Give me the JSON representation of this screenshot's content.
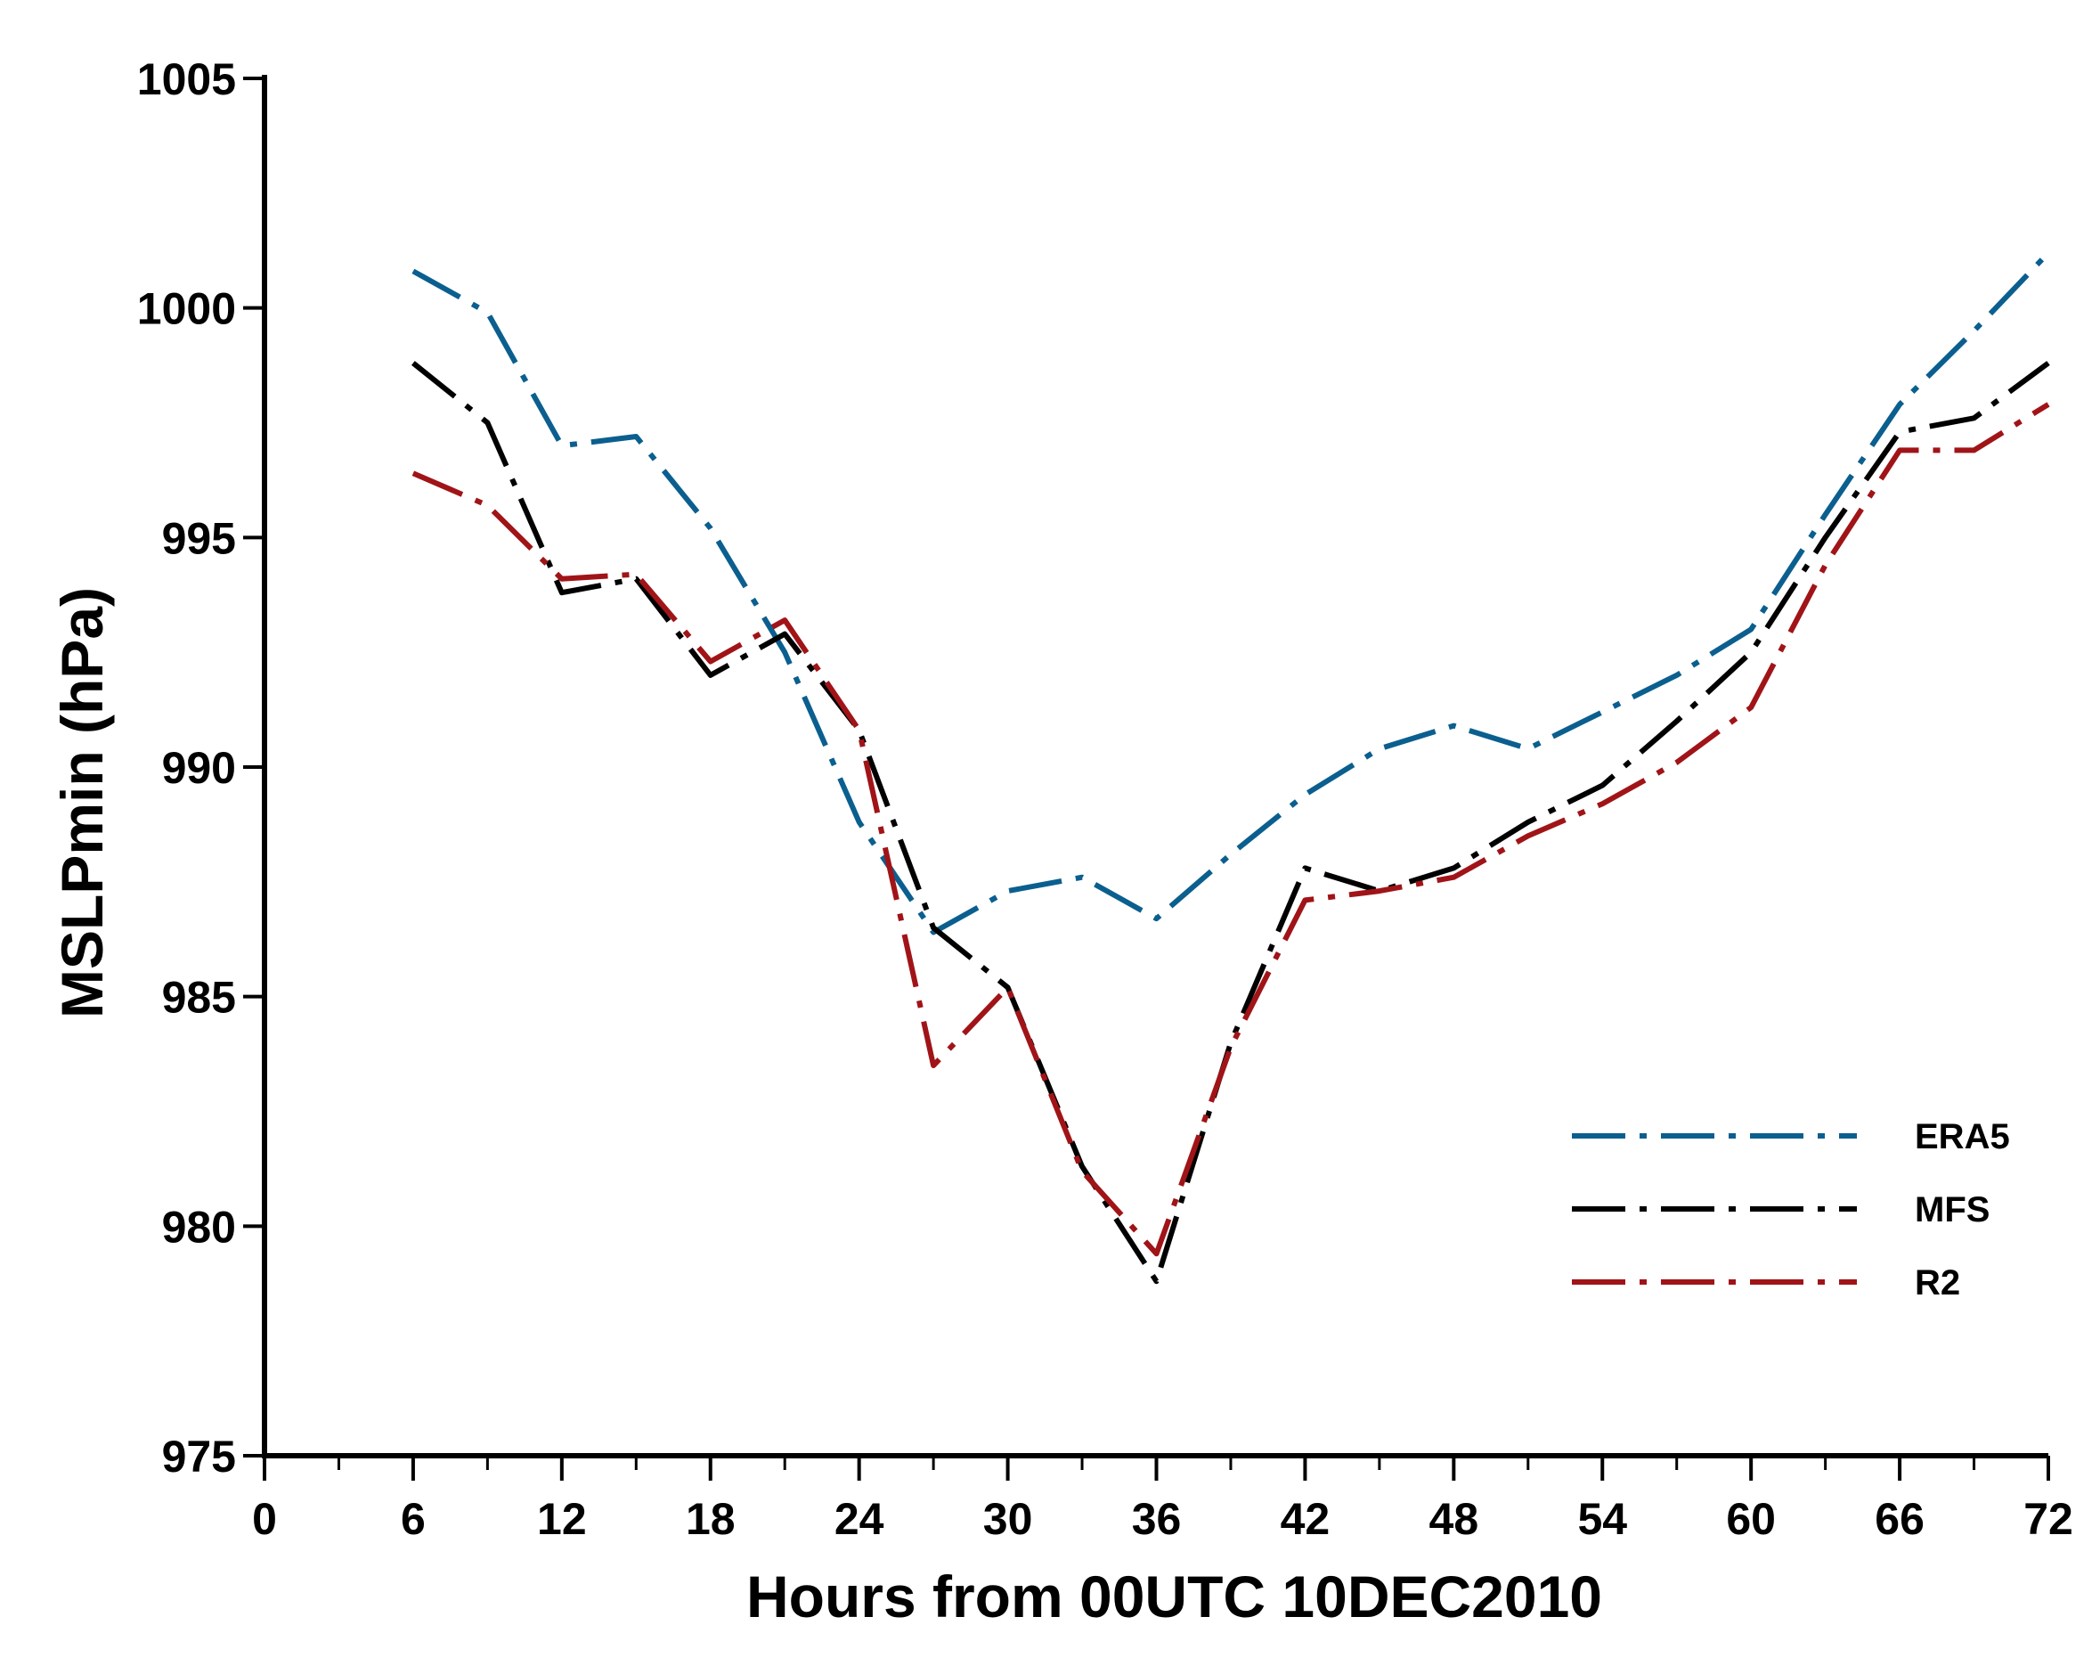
{
  "chart_data": {
    "type": "line",
    "title": "",
    "xlabel": "Hours from 00UTC 10DEC2010",
    "ylabel": "MSLPmin (hPa)",
    "xlim": [
      0,
      72
    ],
    "ylim": [
      975,
      1005
    ],
    "x_ticks": [
      "0",
      "6",
      "12",
      "18",
      "24",
      "30",
      "36",
      "42",
      "48",
      "54",
      "60",
      "66",
      "72"
    ],
    "y_ticks": [
      "975",
      "980",
      "985",
      "990",
      "995",
      "1000",
      "1005"
    ],
    "grid": false,
    "legend_position": "bottom-right",
    "series": [
      {
        "name": "ERA5",
        "color": "#0b5f8f",
        "x": [
          6,
          9,
          12,
          15,
          18,
          21,
          24,
          27,
          30,
          33,
          36,
          39,
          42,
          45,
          48,
          51,
          54,
          57,
          60,
          63,
          66,
          69,
          72
        ],
        "y": [
          1000.8,
          999.9,
          997.0,
          997.2,
          995.2,
          992.5,
          988.8,
          986.4,
          987.3,
          987.6,
          986.7,
          988.1,
          989.4,
          990.4,
          990.9,
          990.4,
          991.2,
          992.0,
          993.0,
          995.5,
          997.9,
          999.5,
          1001.2
        ]
      },
      {
        "name": "MFS",
        "color": "#000000",
        "x": [
          6,
          9,
          12,
          15,
          18,
          21,
          24,
          27,
          30,
          33,
          36,
          39,
          42,
          45,
          48,
          51,
          54,
          57,
          60,
          63,
          66,
          69,
          72
        ],
        "y": [
          998.8,
          997.5,
          993.8,
          994.1,
          992.0,
          992.9,
          990.8,
          986.5,
          985.2,
          981.3,
          978.8,
          984.0,
          987.8,
          987.3,
          987.8,
          988.8,
          989.6,
          991.0,
          992.5,
          995.0,
          997.3,
          997.6,
          998.8
        ]
      },
      {
        "name": "R2",
        "color": "#a01418",
        "x": [
          6,
          9,
          12,
          15,
          18,
          21,
          24,
          27,
          30,
          33,
          36,
          39,
          42,
          45,
          48,
          51,
          54,
          57,
          60,
          63,
          66,
          69,
          72
        ],
        "y": [
          996.4,
          995.7,
          994.1,
          994.2,
          992.3,
          993.2,
          990.8,
          983.5,
          985.2,
          981.2,
          979.4,
          983.9,
          987.1,
          987.3,
          987.6,
          988.5,
          989.2,
          990.1,
          991.3,
          994.4,
          996.9,
          996.9,
          997.9
        ]
      }
    ]
  }
}
